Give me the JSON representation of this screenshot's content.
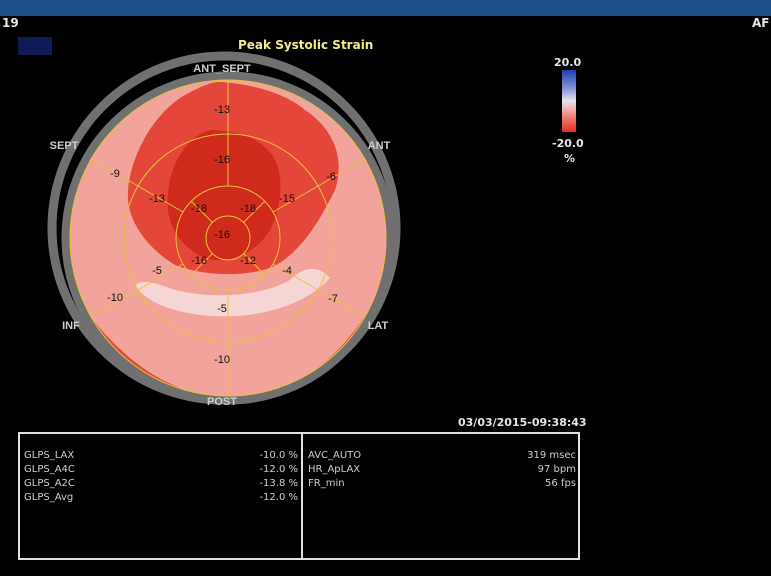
{
  "header": {
    "left_text": "19",
    "right_text": "AF"
  },
  "title": "Peak Systolic Strain",
  "wall_labels": {
    "top": "ANT_SEPT",
    "upper_left": "SEPT",
    "upper_right": "ANT",
    "lower_left": "INF",
    "lower_right": "LAT",
    "bottom": "POST"
  },
  "segments": {
    "basal": [
      "-13",
      "-6",
      "-7",
      "-10",
      "-10",
      "-9"
    ],
    "mid": [
      "-16",
      "-15",
      "-4",
      "-5",
      "-5",
      "-13"
    ],
    "apical": [
      "-18",
      "-18",
      "-12",
      "-16"
    ],
    "apex": "-16"
  },
  "scale": {
    "max": "20.0",
    "min": "-20.0",
    "unit": "%"
  },
  "timestamp": "03/03/2015-09:38:43",
  "glps": [
    {
      "label": "GLPS_LAX",
      "value": "-10.0 %"
    },
    {
      "label": "GLPS_A4C",
      "value": "-12.0 %"
    },
    {
      "label": "GLPS_A2C",
      "value": "-13.8 %"
    },
    {
      "label": "GLPS_Avg",
      "value": "-12.0 %"
    }
  ],
  "timing": [
    {
      "label": "AVC_AUTO",
      "value": "319 msec"
    },
    {
      "label": "HR_ApLAX",
      "value": "97 bpm"
    },
    {
      "label": "FR_min",
      "value": "56 fps"
    }
  ],
  "colors": {
    "header_bar": "#1c4f8a",
    "title": "#f0ee8a",
    "strain_dark": "#cf2a1c",
    "strain_mid": "#e4473a",
    "strain_light": "#f2a39c",
    "strain_pale": "#f6d6d4",
    "strain_blue": "#b3b7de"
  }
}
